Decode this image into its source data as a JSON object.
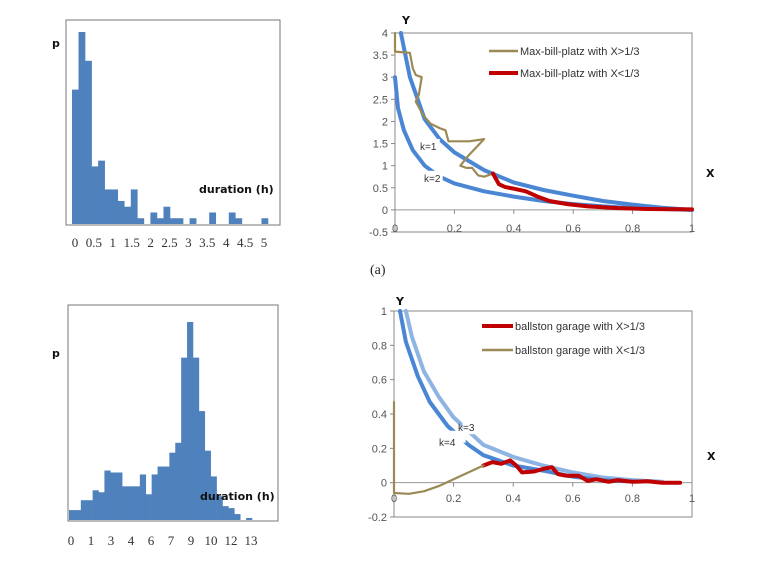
{
  "caption": "(a)",
  "chart_data": [
    {
      "type": "bar",
      "id": "hist-top",
      "title": "",
      "ylabel": "p",
      "xlabel": "duration  (h)",
      "tick_labels": [
        "0",
        "0.5",
        "1",
        "1.5",
        "2",
        "2.5",
        "3",
        "3.5",
        "4",
        "4.5",
        "5"
      ],
      "xlim": [
        0,
        5.2
      ],
      "bin_width": 0.17,
      "values": [
        0.7,
        1.0,
        0.85,
        0.3,
        0.33,
        0.18,
        0.18,
        0.12,
        0.09,
        0.18,
        0.03,
        0.0,
        0.06,
        0.03,
        0.09,
        0.03,
        0.03,
        0.0,
        0.03,
        0.0,
        0.0,
        0.06,
        0.0,
        0.0,
        0.06,
        0.03,
        0.0,
        0.0,
        0.0,
        0.03
      ],
      "color": "#4f81bd"
    },
    {
      "type": "line",
      "id": "curves-top",
      "xlabel": "X",
      "ylabel": "Y",
      "xlim": [
        0,
        1
      ],
      "ylim": [
        -0.5,
        4
      ],
      "xticks": [
        "0",
        "0.2",
        "0.4",
        "0.6",
        "0.8",
        "1"
      ],
      "yticks": [
        "-0.5",
        "0",
        "0.5",
        "1",
        "1.5",
        "2",
        "2.5",
        "3",
        "3.5",
        "4"
      ],
      "annotations": [
        {
          "text": "k=1",
          "x": 0.08,
          "y": 1.4
        },
        {
          "text": "k=2",
          "x": 0.09,
          "y": 0.68
        }
      ],
      "legend_position": "top-right",
      "series": [
        {
          "name": "k=1",
          "color": "#4a86d4",
          "role": "reference",
          "points": [
            [
              0.02,
              4
            ],
            [
              0.05,
              3.0
            ],
            [
              0.1,
              2.05
            ],
            [
              0.15,
              1.6
            ],
            [
              0.2,
              1.3
            ],
            [
              0.3,
              0.9
            ],
            [
              0.4,
              0.62
            ],
            [
              0.5,
              0.45
            ],
            [
              0.6,
              0.32
            ],
            [
              0.7,
              0.2
            ],
            [
              0.8,
              0.12
            ],
            [
              0.9,
              0.05
            ],
            [
              1,
              0
            ]
          ]
        },
        {
          "name": "k=2",
          "color": "#4a86d4",
          "role": "reference",
          "points": [
            [
              0.0,
              3.0
            ],
            [
              0.01,
              2.3
            ],
            [
              0.03,
              1.8
            ],
            [
              0.06,
              1.35
            ],
            [
              0.1,
              1.0
            ],
            [
              0.15,
              0.75
            ],
            [
              0.2,
              0.6
            ],
            [
              0.3,
              0.42
            ],
            [
              0.4,
              0.3
            ],
            [
              0.5,
              0.2
            ],
            [
              0.6,
              0.13
            ],
            [
              0.7,
              0.08
            ],
            [
              0.8,
              0.04
            ],
            [
              0.9,
              0.02
            ],
            [
              1,
              0
            ]
          ]
        },
        {
          "name": "Max-bill-platz with X>1/3",
          "color": "#9b8a55",
          "points": [
            [
              0,
              4
            ],
            [
              0.0,
              3.58
            ],
            [
              0.05,
              3.55
            ],
            [
              0.06,
              3.2
            ],
            [
              0.07,
              3.05
            ],
            [
              0.09,
              3.0
            ],
            [
              0.08,
              2.6
            ],
            [
              0.07,
              2.45
            ],
            [
              0.09,
              2.2
            ],
            [
              0.1,
              2.1
            ],
            [
              0.12,
              1.95
            ],
            [
              0.15,
              1.85
            ],
            [
              0.17,
              1.8
            ],
            [
              0.18,
              1.55
            ],
            [
              0.22,
              1.55
            ],
            [
              0.25,
              1.55
            ],
            [
              0.3,
              1.6
            ],
            [
              0.25,
              1.25
            ],
            [
              0.22,
              1.0
            ],
            [
              0.24,
              0.95
            ],
            [
              0.26,
              0.95
            ],
            [
              0.28,
              0.78
            ],
            [
              0.3,
              0.75
            ],
            [
              0.33,
              0.82
            ]
          ]
        },
        {
          "name": "Max-bill-platz with X<1/3",
          "color": "#c00000",
          "points": [
            [
              0.33,
              0.82
            ],
            [
              0.35,
              0.58
            ],
            [
              0.37,
              0.52
            ],
            [
              0.4,
              0.48
            ],
            [
              0.44,
              0.42
            ],
            [
              0.48,
              0.3
            ],
            [
              0.52,
              0.2
            ],
            [
              0.58,
              0.13
            ],
            [
              0.65,
              0.08
            ],
            [
              0.75,
              0.04
            ],
            [
              0.85,
              0.02
            ],
            [
              1,
              0.01
            ]
          ]
        }
      ]
    },
    {
      "type": "bar",
      "id": "hist-bottom",
      "title": "",
      "ylabel": "p",
      "xlabel": "duration  (h)",
      "tick_labels": [
        "0",
        "1",
        "3",
        "4",
        "6",
        "7",
        "9",
        "10",
        "12",
        "13"
      ],
      "bin_width": 0.55,
      "values": [
        0.05,
        0.05,
        0.1,
        0.1,
        0.15,
        0.14,
        0.25,
        0.24,
        0.24,
        0.17,
        0.17,
        0.17,
        0.23,
        0.13,
        0.23,
        0.27,
        0.27,
        0.34,
        0.39,
        0.82,
        1.0,
        0.82,
        0.55,
        0.35,
        0.22,
        0.12,
        0.07,
        0.06,
        0.03,
        0.0,
        0.01
      ],
      "color": "#4f81bd"
    },
    {
      "type": "line",
      "id": "curves-bottom",
      "xlabel": "X",
      "ylabel": "Y",
      "xlim": [
        0,
        1
      ],
      "ylim": [
        -0.2,
        1
      ],
      "xticks": [
        "0",
        "0.2",
        "0.4",
        "0.6",
        "0.8",
        "1"
      ],
      "yticks": [
        "-0.2",
        "0",
        "0.2",
        "0.4",
        "0.6",
        "0.8",
        "1"
      ],
      "annotations": [
        {
          "text": "k=3",
          "x": 0.24,
          "y": 0.3
        },
        {
          "text": "k=4",
          "x": 0.17,
          "y": 0.25
        }
      ],
      "legend_position": "top-right",
      "series": [
        {
          "name": "k=3",
          "color": "#8db4e2",
          "role": "reference",
          "points": [
            [
              0.04,
              1
            ],
            [
              0.06,
              0.85
            ],
            [
              0.1,
              0.65
            ],
            [
              0.15,
              0.5
            ],
            [
              0.2,
              0.38
            ],
            [
              0.3,
              0.22
            ],
            [
              0.4,
              0.15
            ],
            [
              0.5,
              0.1
            ],
            [
              0.6,
              0.06
            ],
            [
              0.7,
              0.03
            ],
            [
              0.8,
              0.015
            ],
            [
              0.9,
              0.005
            ]
          ]
        },
        {
          "name": "k=4",
          "color": "#4a86d4",
          "role": "reference",
          "points": [
            [
              0.02,
              1
            ],
            [
              0.04,
              0.82
            ],
            [
              0.08,
              0.62
            ],
            [
              0.12,
              0.47
            ],
            [
              0.18,
              0.33
            ],
            [
              0.25,
              0.22
            ],
            [
              0.3,
              0.16
            ],
            [
              0.4,
              0.1
            ],
            [
              0.5,
              0.07
            ],
            [
              0.6,
              0.035
            ],
            [
              0.7,
              0.015
            ],
            [
              0.8,
              0.007
            ]
          ]
        },
        {
          "name": "ballston garage with X>1/3",
          "color": "#c00000",
          "points": [
            [
              0.3,
              0.1
            ],
            [
              0.33,
              0.12
            ],
            [
              0.36,
              0.11
            ],
            [
              0.39,
              0.13
            ],
            [
              0.41,
              0.1
            ],
            [
              0.43,
              0.06
            ],
            [
              0.47,
              0.065
            ],
            [
              0.5,
              0.08
            ],
            [
              0.53,
              0.09
            ],
            [
              0.55,
              0.05
            ],
            [
              0.58,
              0.04
            ],
            [
              0.62,
              0.04
            ],
            [
              0.65,
              0.01
            ],
            [
              0.68,
              0.02
            ],
            [
              0.72,
              0.005
            ],
            [
              0.75,
              0.015
            ],
            [
              0.8,
              0.005
            ],
            [
              0.85,
              0.008
            ],
            [
              0.9,
              0.0
            ],
            [
              0.96,
              0.0
            ]
          ]
        },
        {
          "name": "ballston garage with X<1/3",
          "color": "#9b8a55",
          "points": [
            [
              0,
              0.47
            ],
            [
              0.0,
              -0.06
            ],
            [
              0.05,
              -0.065
            ],
            [
              0.1,
              -0.05
            ],
            [
              0.15,
              -0.02
            ],
            [
              0.2,
              0.02
            ],
            [
              0.25,
              0.06
            ],
            [
              0.3,
              0.1
            ]
          ]
        }
      ]
    }
  ]
}
